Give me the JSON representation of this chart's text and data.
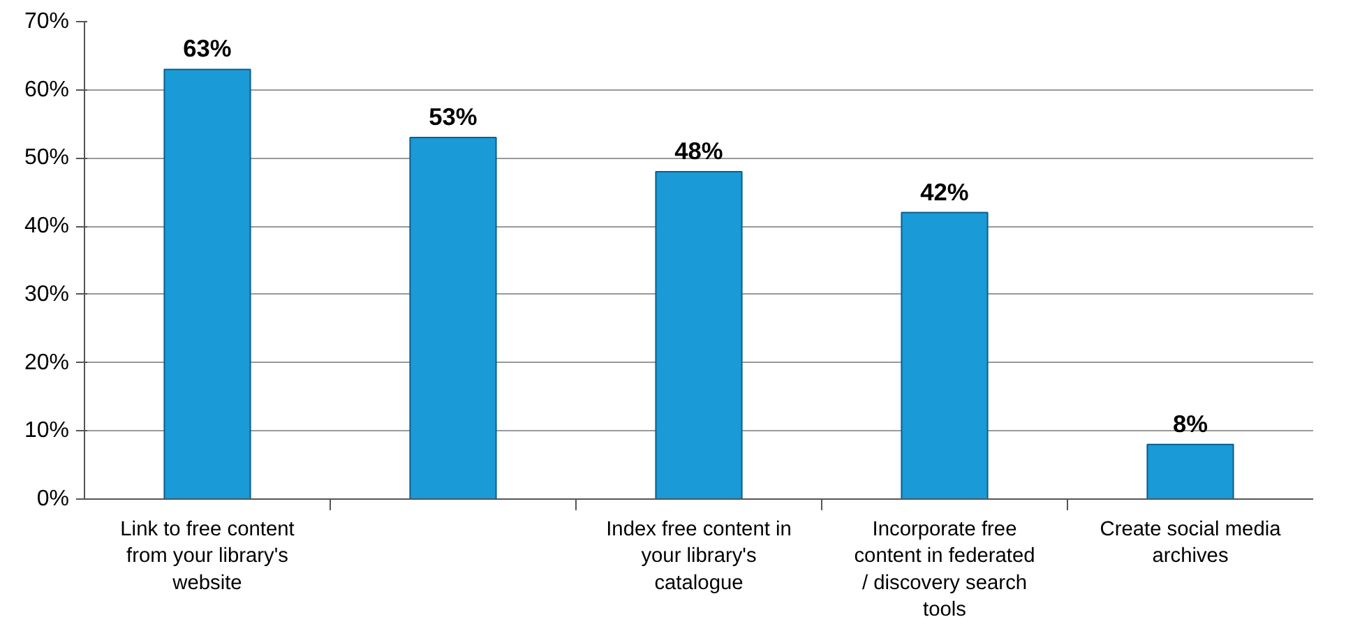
{
  "chart_data": {
    "type": "bar",
    "categories": [
      "Link to free content from your library's website",
      null,
      "Index free content in your library's catalogue",
      "Incorporate free content in federated / discovery search tools",
      "Create social media archives"
    ],
    "values": [
      63,
      53,
      48,
      42,
      8
    ],
    "color": "#1a9ad6",
    "ylim": [
      0,
      70
    ],
    "yticks": [
      {
        "value": 0,
        "label": "0%"
      },
      {
        "value": 10,
        "label": "10%"
      },
      {
        "value": 20,
        "label": "20%"
      },
      {
        "value": 30,
        "label": "30%"
      },
      {
        "value": 40,
        "label": "40%"
      },
      {
        "value": 50,
        "label": "50%"
      },
      {
        "value": 60,
        "label": "60%"
      },
      {
        "value": 70,
        "label": "70%"
      }
    ],
    "value_labels": [
      "63%",
      "53%",
      "48%",
      "42%",
      "8%"
    ],
    "grid": "y"
  }
}
